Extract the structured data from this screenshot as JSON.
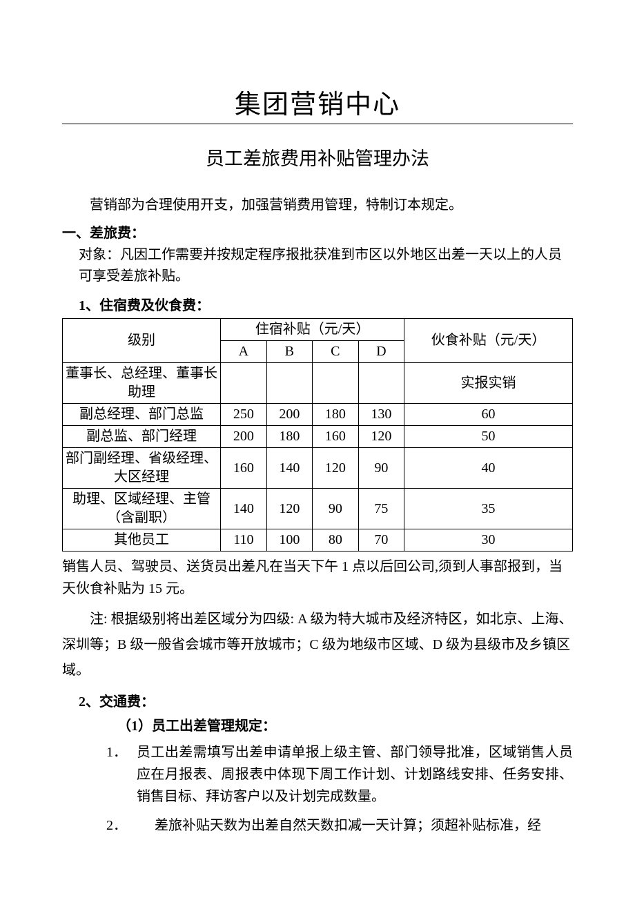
{
  "title": "集团营销中心",
  "subtitle": "员工差旅费用补贴管理办法",
  "intro": "营销部为合理使用开支，加强营销费用管理，特制订本规定。",
  "section1": {
    "heading": "一、差旅费：",
    "subject": "对象：凡因工作需要并按规定程序报批获准到市区以外地区出差一天以上的人员可享受差旅补贴。",
    "item1_heading": "1、住宿费及伙食费：",
    "table": {
      "header_level": "级别",
      "header_lodging": "住宿补贴（元/天）",
      "header_meal": "伙食补贴（元/天）",
      "col_a": "A",
      "col_b": "B",
      "col_c": "C",
      "col_d": "D",
      "rows": [
        {
          "level": "董事长、总经理、董事长助理",
          "a": "",
          "b": "",
          "c": "",
          "d": "",
          "meal": "实报实销"
        },
        {
          "level": "副总经理、部门总监",
          "a": "250",
          "b": "200",
          "c": "180",
          "d": "130",
          "meal": "60"
        },
        {
          "level": "副总监、部门经理",
          "a": "200",
          "b": "180",
          "c": "160",
          "d": "120",
          "meal": "50"
        },
        {
          "level": "部门副经理、省级经理、大区经理",
          "a": "160",
          "b": "140",
          "c": "120",
          "d": "90",
          "meal": "40"
        },
        {
          "level": "助理、区域经理、主管（含副职）",
          "a": "140",
          "b": "120",
          "c": "90",
          "d": "75",
          "meal": "35"
        },
        {
          "level": "其他员工",
          "a": "110",
          "b": "100",
          "c": "80",
          "d": "70",
          "meal": "30"
        }
      ]
    },
    "after_table_note": "销售人员、驾驶员、送货员出差凡在当天下午 1 点以后回公司,须到人事部报到，当天伙食补贴为 15 元。",
    "region_note": "注: 根据级别将出差区域分为四级: A 级为特大城市及经济特区，如北京、上海、深圳等；B 级一般省会城市等开放城市；C 级为地级市区域、D 级为县级市及乡镇区域。",
    "item2_heading": "2、交通费：",
    "item2_sub1_heading": "（1）员工出差管理规定：",
    "item2_list": [
      {
        "num": "1．",
        "text": "员工出差需填写出差申请单报上级主管、部门领导批准，区域销售人员应在月报表、周报表中体现下周工作计划、计划路线安排、任务安排、销售目标、拜访客户以及计划完成数量。"
      },
      {
        "num": "2．",
        "text": "差旅补贴天数为出差自然天数扣减一天计算；须超补贴标准，经"
      }
    ]
  },
  "colors": {
    "text": "#000000",
    "background": "#ffffff",
    "rule": "#000000",
    "table_border": "#000000"
  },
  "typography": {
    "title_fontsize": 38,
    "subtitle_fontsize": 27,
    "body_fontsize": 20
  }
}
